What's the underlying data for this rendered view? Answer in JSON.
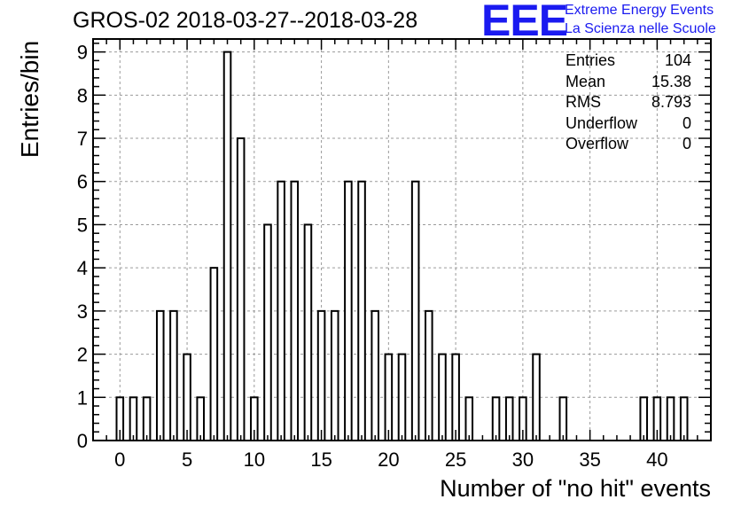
{
  "title": "GROS-02 2018-03-27--2018-03-28",
  "logo": {
    "mark": "EEE",
    "line1": "Extreme Energy Events",
    "line2": "La Scienza nelle Scuole",
    "color": "#1a1af0"
  },
  "stats": [
    {
      "label": "Entries",
      "value": "104"
    },
    {
      "label": "Mean",
      "value": "15.38"
    },
    {
      "label": "RMS",
      "value": "8.793"
    },
    {
      "label": "Underflow",
      "value": "0"
    },
    {
      "label": "Overflow",
      "value": "0"
    }
  ],
  "chart_data": {
    "type": "bar",
    "title": "GROS-02 2018-03-27--2018-03-28",
    "xlabel": "Number of \"no hit\" events",
    "ylabel": "Entries/bin",
    "xlim": [
      -2,
      44
    ],
    "ylim": [
      0,
      9.3
    ],
    "xticks": [
      0,
      5,
      10,
      15,
      20,
      25,
      30,
      35,
      40
    ],
    "yticks": [
      0,
      1,
      2,
      3,
      4,
      5,
      6,
      7,
      8,
      9
    ],
    "grid": true,
    "bin_width": 1,
    "bins": [
      0,
      1,
      2,
      3,
      4,
      5,
      6,
      7,
      8,
      9,
      10,
      11,
      12,
      13,
      14,
      15,
      16,
      17,
      18,
      19,
      20,
      21,
      22,
      23,
      24,
      25,
      26,
      27,
      28,
      29,
      30,
      31,
      32,
      33,
      34,
      35,
      36,
      37,
      38,
      39,
      40,
      41,
      42
    ],
    "values": [
      1,
      1,
      1,
      3,
      3,
      2,
      1,
      4,
      9,
      7,
      1,
      5,
      6,
      6,
      5,
      3,
      3,
      6,
      6,
      3,
      2,
      2,
      6,
      3,
      2,
      2,
      1,
      0,
      1,
      1,
      1,
      2,
      0,
      1,
      0,
      0,
      0,
      0,
      0,
      1,
      1,
      1,
      1
    ]
  }
}
